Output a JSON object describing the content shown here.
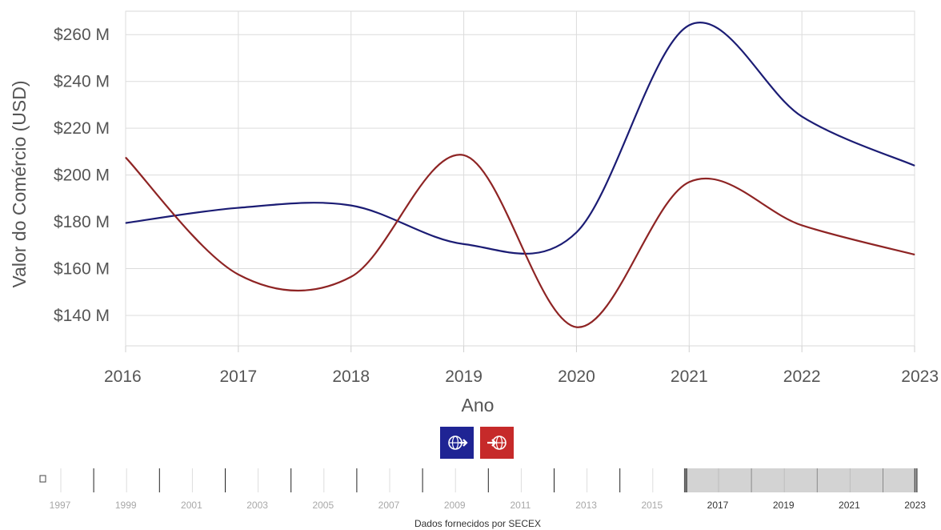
{
  "chart_data": {
    "type": "line",
    "x": [
      2016,
      2017,
      2018,
      2019,
      2020,
      2021,
      2022,
      2023
    ],
    "xlabel": "Ano",
    "ylabel": "Valor do Comércio (USD)",
    "ylim": [
      127,
      270
    ],
    "yticks": [
      140,
      160,
      180,
      200,
      220,
      240,
      260
    ],
    "ytick_labels": [
      "$140 M",
      "$160 M",
      "$180 M",
      "$200 M",
      "$220 M",
      "$240 M",
      "$260 M"
    ],
    "xtick_labels": [
      "2016",
      "2017",
      "2018",
      "2019",
      "2020",
      "2021",
      "2022",
      "2023"
    ],
    "grid": true,
    "series": [
      {
        "values": [
          179.5,
          186,
          187,
          170.5,
          175.5,
          264,
          225,
          204
        ]
      },
      {
        "values": [
          207.5,
          157.5,
          156.5,
          208.5,
          135,
          197,
          178.5,
          166
        ]
      }
    ]
  },
  "colors": {
    "export": "#1b1c74",
    "import": "#8e2424",
    "export_button": "#1f2494",
    "import_button": "#c62a2a"
  },
  "legend": {
    "export_icon": "globe-export-icon",
    "import_icon": "globe-import-icon"
  },
  "timeline": {
    "years": [
      1997,
      1999,
      2001,
      2003,
      2005,
      2007,
      2009,
      2011,
      2013,
      2015,
      2017,
      2019,
      2021,
      2023
    ],
    "selected_range": [
      2016,
      2023
    ]
  },
  "source_text": "Dados fornecidos por SECEX"
}
